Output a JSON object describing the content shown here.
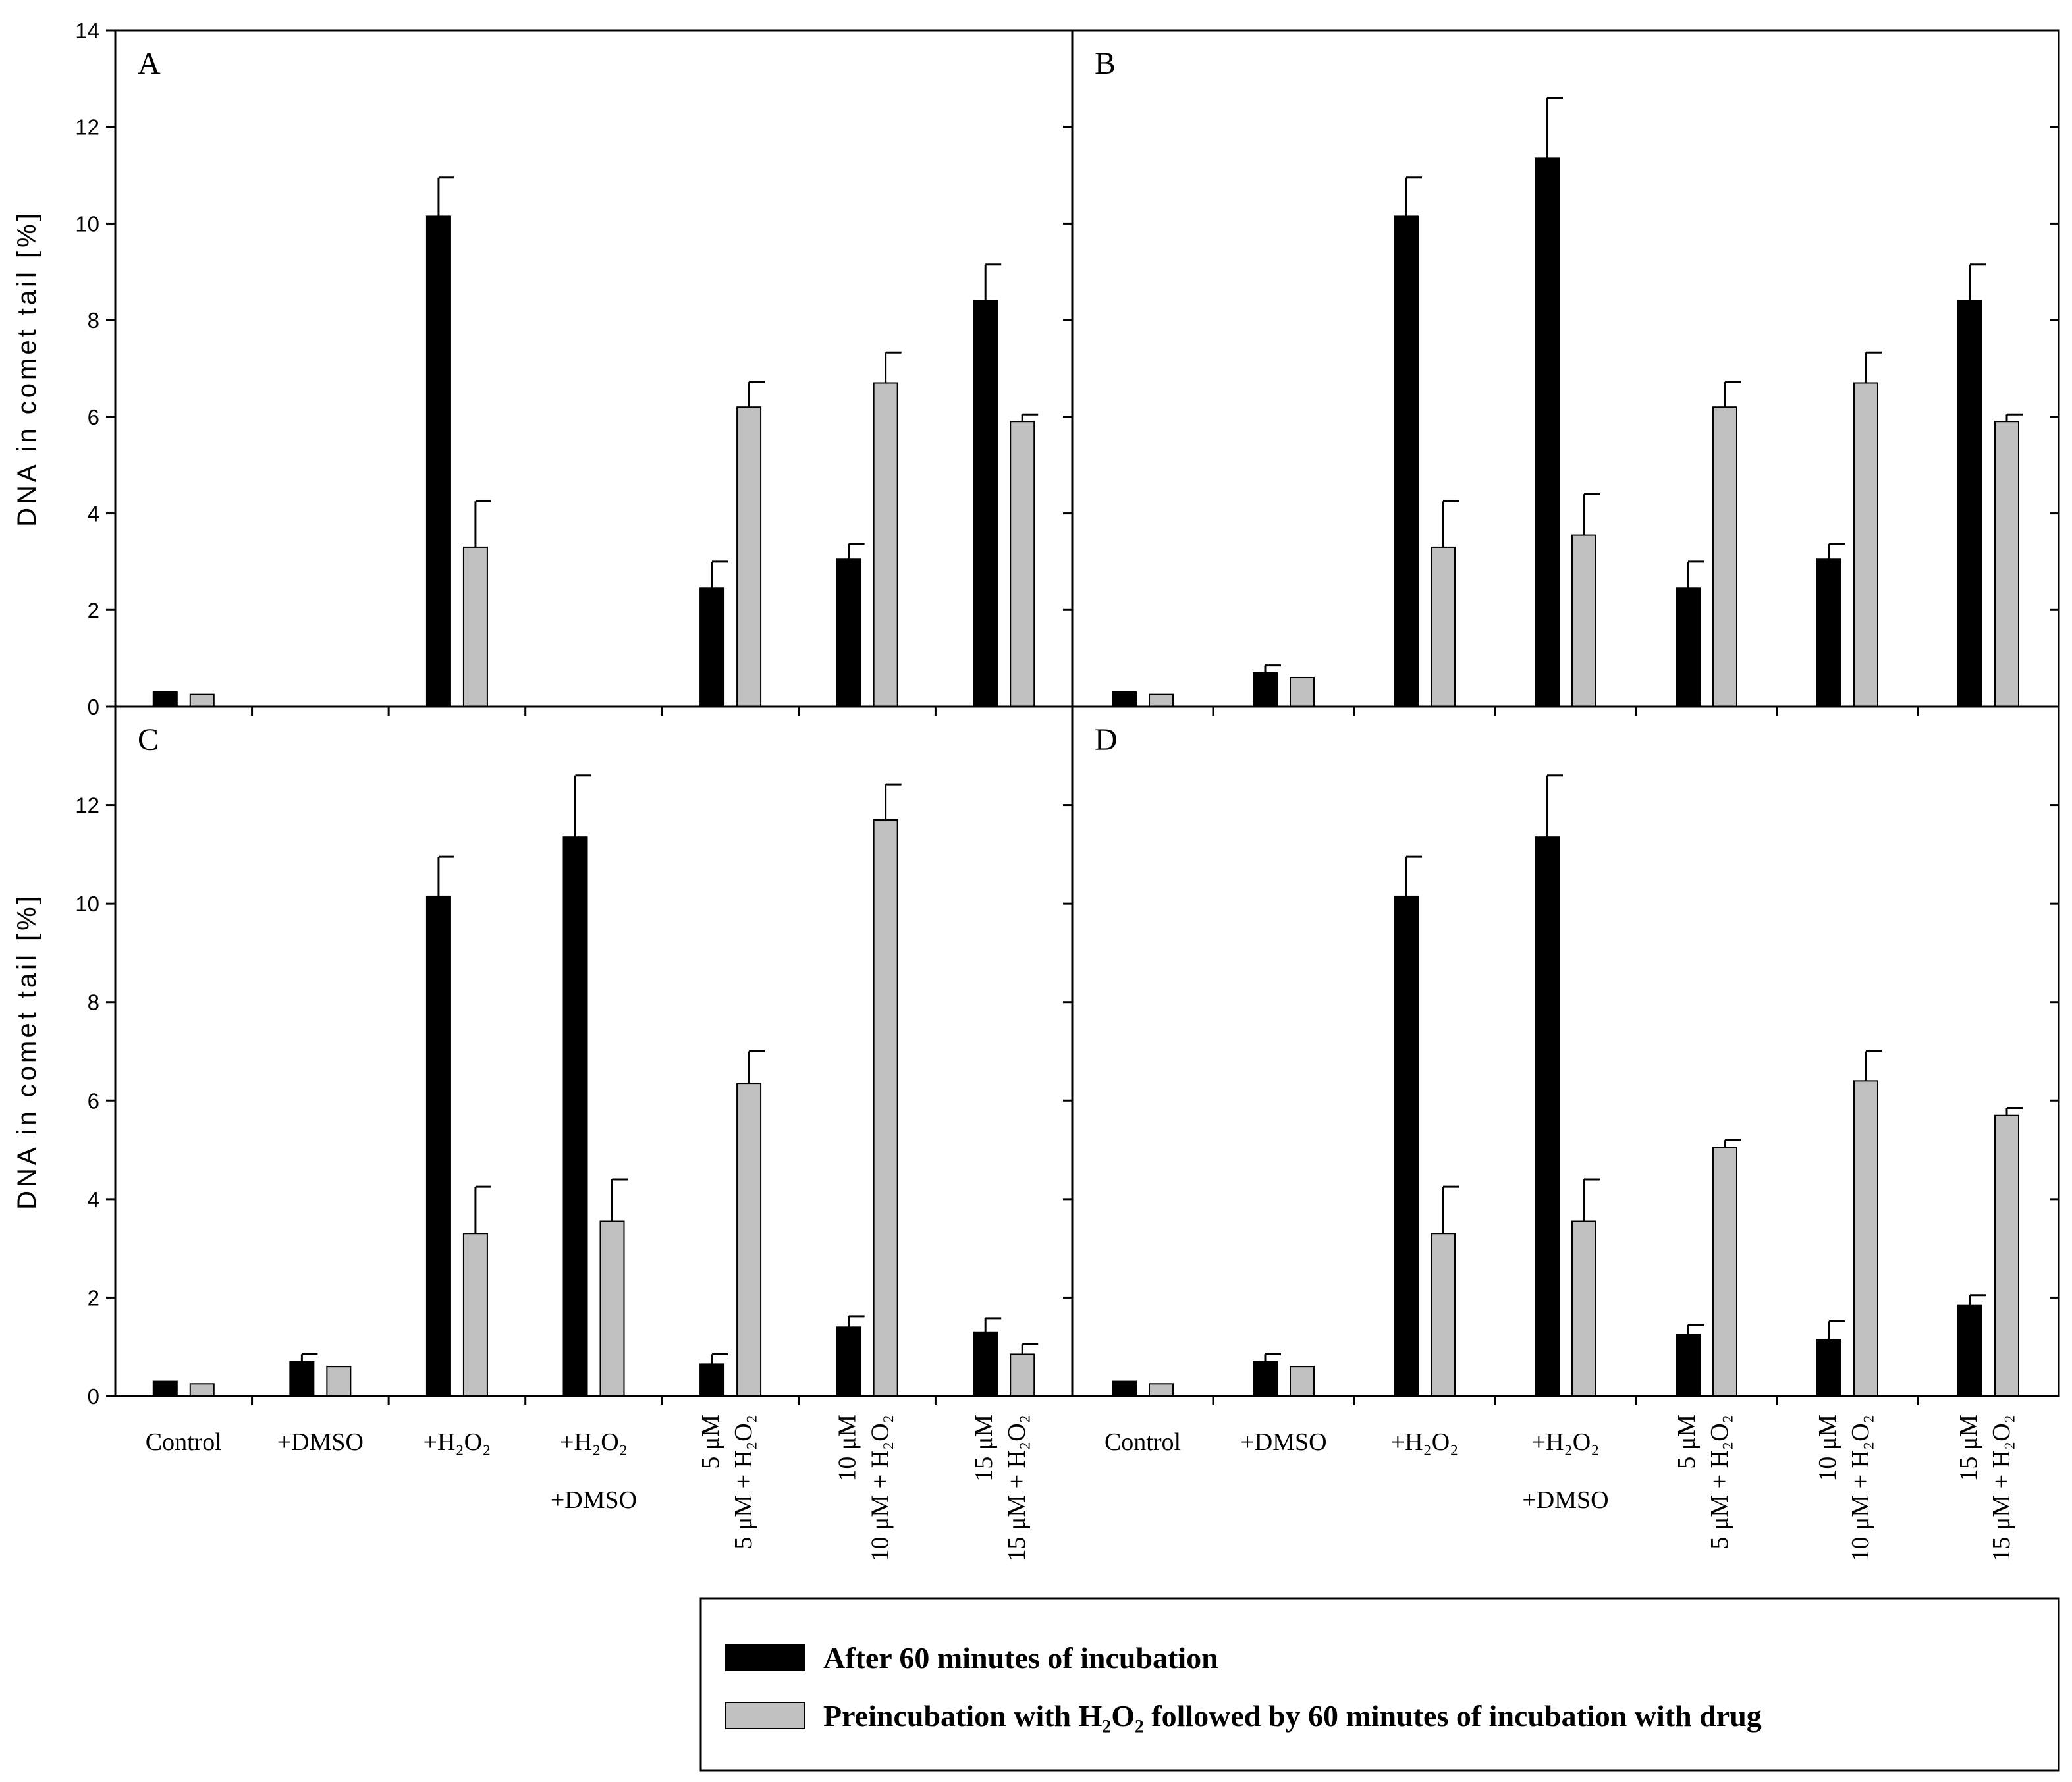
{
  "chart_data": {
    "type": "bar",
    "ylabel": "DNA in comet tail [%]",
    "ylim": [
      0,
      14
    ],
    "yticks": [
      0,
      2,
      4,
      6,
      8,
      10,
      12,
      14
    ],
    "categories": [
      {
        "line1": "Control",
        "line2": ""
      },
      {
        "line1": "+DMSO",
        "line2": ""
      },
      {
        "line1": "+H₂O₂",
        "line2": ""
      },
      {
        "line1": "+H₂O₂",
        "line2": "+DMSO"
      },
      {
        "line1": "5 μM",
        "line2": "5 μM + H₂O₂"
      },
      {
        "line1": "10 μM",
        "line2": "10 μM + H₂O₂"
      },
      {
        "line1": "15 μM",
        "line2": "15 μM + H₂O₂"
      }
    ],
    "legend": {
      "placement": "bottom-right",
      "series1": "After 60 minutes of incubation",
      "series2": "Preincubation with H₂O₂ followed by 60 minutes of incubation with drug"
    },
    "colors": {
      "series1": "#000000",
      "series2": "#c0c0c0"
    },
    "panels": [
      {
        "label": "A",
        "series1": [
          0.3,
          null,
          10.15,
          null,
          2.45,
          3.05,
          8.4
        ],
        "series1_err": [
          0.0,
          null,
          0.8,
          null,
          0.55,
          0.32,
          0.75
        ],
        "series2": [
          0.25,
          null,
          3.3,
          null,
          6.2,
          6.7,
          5.9
        ],
        "series2_err": [
          0.0,
          null,
          0.95,
          null,
          0.52,
          0.63,
          0.15
        ]
      },
      {
        "label": "B",
        "series1": [
          0.3,
          0.7,
          10.15,
          11.35,
          2.45,
          3.05,
          8.4
        ],
        "series1_err": [
          0.0,
          0.15,
          0.8,
          1.25,
          0.55,
          0.32,
          0.75
        ],
        "series2": [
          0.25,
          0.6,
          3.3,
          3.55,
          6.2,
          6.7,
          5.9
        ],
        "series2_err": [
          0.0,
          0.0,
          0.95,
          0.85,
          0.52,
          0.63,
          0.15
        ]
      },
      {
        "label": "C",
        "series1": [
          0.3,
          0.7,
          10.15,
          11.35,
          0.65,
          1.4,
          1.3
        ],
        "series1_err": [
          0.0,
          0.15,
          0.8,
          1.25,
          0.2,
          0.22,
          0.28
        ],
        "series2": [
          0.25,
          0.6,
          3.3,
          3.55,
          6.35,
          11.7,
          0.85
        ],
        "series2_err": [
          0.0,
          0.0,
          0.95,
          0.85,
          0.65,
          0.72,
          0.2
        ]
      },
      {
        "label": "D",
        "series1": [
          0.3,
          0.7,
          10.15,
          11.35,
          1.25,
          1.15,
          1.85
        ],
        "series1_err": [
          0.0,
          0.15,
          0.8,
          1.25,
          0.2,
          0.37,
          0.2
        ],
        "series2": [
          0.25,
          0.6,
          3.3,
          3.55,
          5.05,
          6.4,
          5.7
        ],
        "series2_err": [
          0.0,
          0.0,
          0.95,
          0.85,
          0.15,
          0.6,
          0.15
        ]
      }
    ]
  }
}
